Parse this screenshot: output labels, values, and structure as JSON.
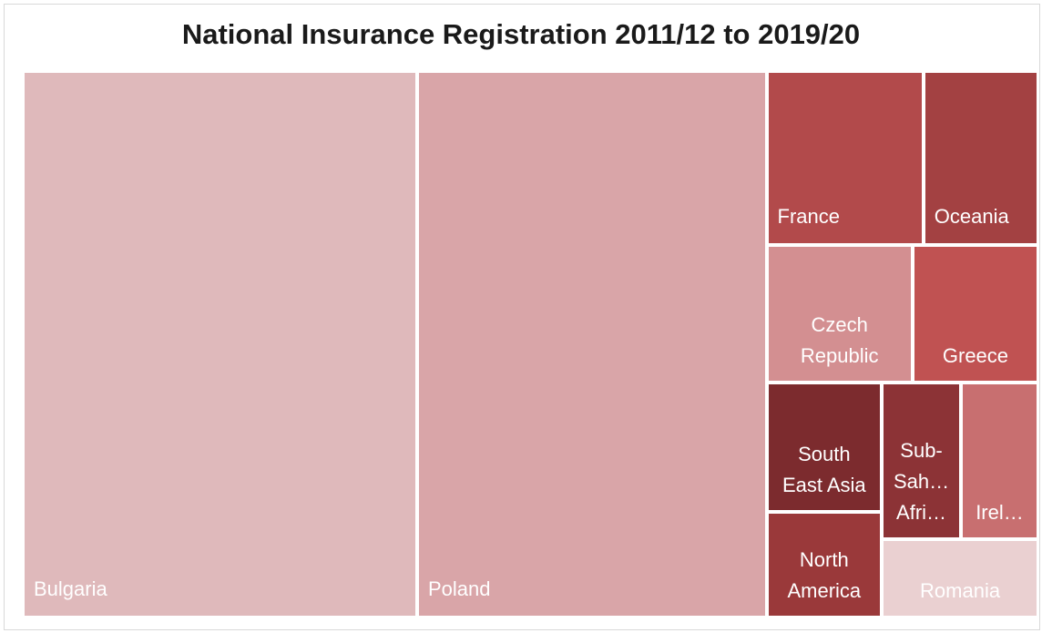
{
  "chart_data": {
    "type": "treemap",
    "title": "National Insurance Registration 2011/12 to 2019/20",
    "categories": [
      "Bulgaria",
      "Poland",
      "France",
      "Oceania",
      "Czech Republic",
      "Greece",
      "South East Asia",
      "North America",
      "Sub- Sah… Afri…",
      "Irel…",
      "Romania"
    ],
    "values": [
      254,
      225,
      32.2,
      23.6,
      23.7,
      20.4,
      17.5,
      14.4,
      14.6,
      14.3,
      14.4
    ],
    "colors": [
      "#dfb9bb",
      "#d9a5a8",
      "#b24a4b",
      "#a34142",
      "#d38f91",
      "#c05252",
      "#7c2b2e",
      "#9a393a",
      "#8c3336",
      "#c86f70",
      "#ead0d1"
    ]
  }
}
